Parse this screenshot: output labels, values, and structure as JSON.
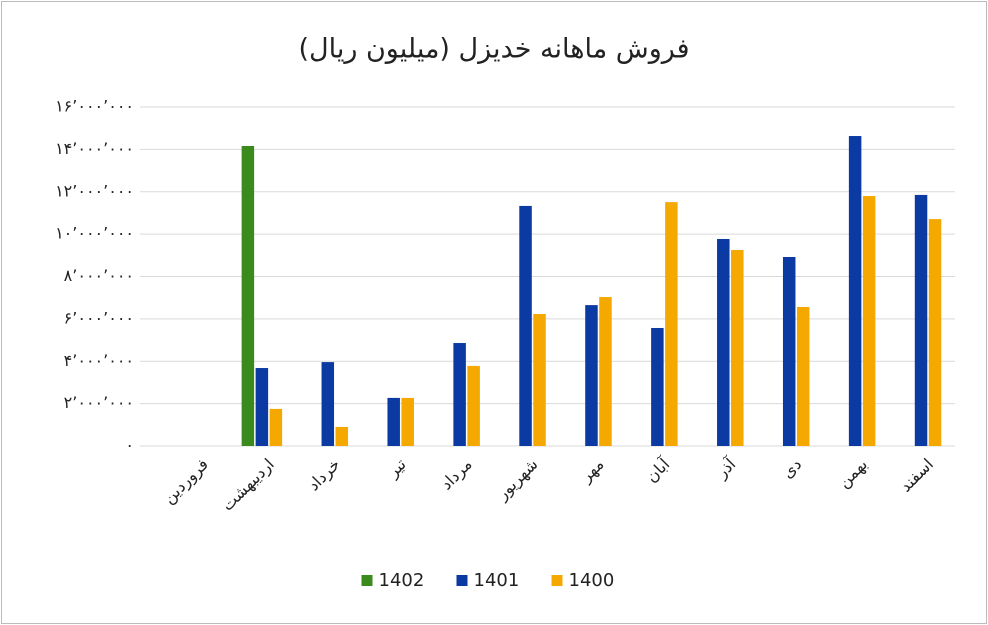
{
  "chart_data": {
    "type": "bar",
    "title": "فروش ماهانه خدیزل (میلیون ریال)",
    "categories": [
      "فروردین",
      "اردیبهشت",
      "خرداد",
      "تیر",
      "مرداد",
      "شهریور",
      "مهر",
      "آبان",
      "آذر",
      "دی",
      "بهمن",
      "اسفند"
    ],
    "series": [
      {
        "name": "1402",
        "color": "#3a8a1e",
        "values": [
          null,
          14160000,
          null,
          null,
          null,
          null,
          null,
          null,
          null,
          null,
          null,
          null
        ]
      },
      {
        "name": "1401",
        "color": "#0b3aa3",
        "values": [
          null,
          3680000,
          3960000,
          2270000,
          4860000,
          11330000,
          6650000,
          5570000,
          9770000,
          8920000,
          14630000,
          11850000
        ]
      },
      {
        "name": "1400",
        "color": "#f5a800",
        "values": [
          null,
          1750000,
          900000,
          2270000,
          3780000,
          6230000,
          7030000,
          11510000,
          9250000,
          6560000,
          11800000,
          10710000
        ]
      }
    ],
    "ylim": [
      0,
      16000000
    ],
    "yticks": [
      {
        "value": 0,
        "label": "۰"
      },
      {
        "value": 2000000,
        "label": "۲’۰۰۰’۰۰۰"
      },
      {
        "value": 4000000,
        "label": "۴’۰۰۰’۰۰۰"
      },
      {
        "value": 6000000,
        "label": "۶’۰۰۰’۰۰۰"
      },
      {
        "value": 8000000,
        "label": "۸’۰۰۰’۰۰۰"
      },
      {
        "value": 10000000,
        "label": "۱۰’۰۰۰’۰۰۰"
      },
      {
        "value": 12000000,
        "label": "۱۲’۰۰۰’۰۰۰"
      },
      {
        "value": 14000000,
        "label": "۱۴’۰۰۰’۰۰۰"
      },
      {
        "value": 16000000,
        "label": "۱۶’۰۰۰’۰۰۰"
      }
    ],
    "grid": true,
    "legend": "bottom"
  }
}
